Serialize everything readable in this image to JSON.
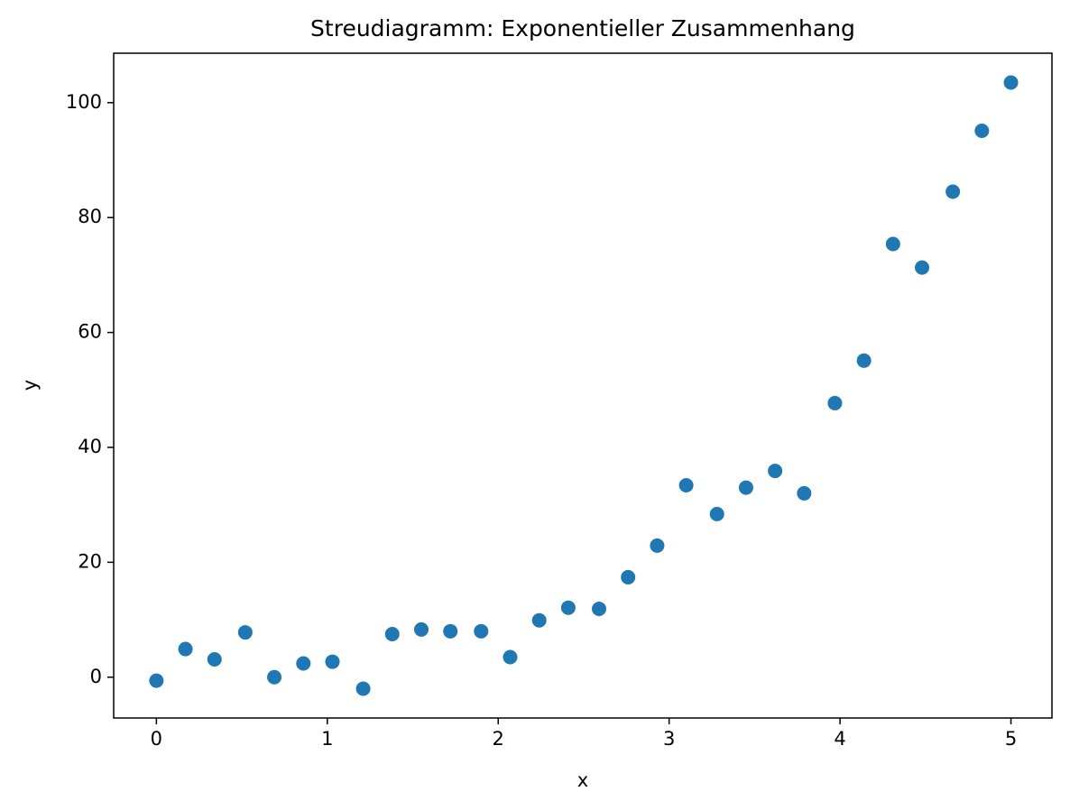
{
  "chart_data": {
    "type": "scatter",
    "title": "Streudiagramm: Exponentieller Zusammenhang",
    "x_label": "x",
    "y_label": "y",
    "x": [
      0,
      0.17,
      0.34,
      0.52,
      0.69,
      0.86,
      1.03,
      1.21,
      1.38,
      1.55,
      1.72,
      1.9,
      2.07,
      2.24,
      2.41,
      2.59,
      2.76,
      2.93,
      3.1,
      3.28,
      3.45,
      3.62,
      3.79,
      3.97,
      4.14,
      4.31,
      4.48,
      4.66,
      4.83,
      5.0
    ],
    "values": [
      -0.6,
      4.9,
      3.1,
      7.8,
      0.0,
      2.4,
      2.7,
      -2.0,
      7.5,
      8.3,
      8.0,
      8.0,
      3.5,
      9.9,
      12.1,
      11.9,
      17.4,
      22.9,
      33.4,
      28.4,
      33.0,
      35.9,
      32.0,
      47.7,
      55.1,
      75.4,
      71.3,
      84.5,
      95.1,
      103.5
    ],
    "color": "#1f77b4",
    "xlim": [
      -0.25,
      5.24
    ],
    "ylim": [
      -7.1,
      108.6
    ],
    "xticks": [
      0,
      1,
      2,
      3,
      4,
      5
    ],
    "yticks": [
      0,
      20,
      40,
      60,
      80,
      100
    ],
    "grid": false
  }
}
